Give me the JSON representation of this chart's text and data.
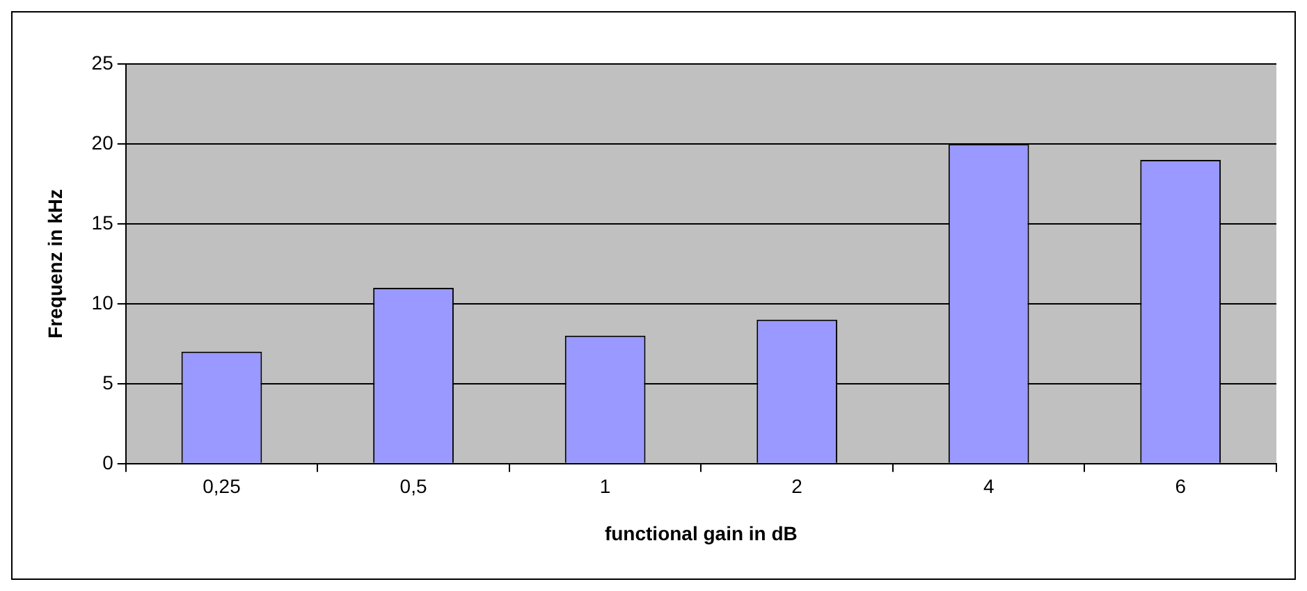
{
  "chart_data": {
    "type": "bar",
    "xlabel": "functional gain in dB",
    "ylabel": "Frequenz in kHz",
    "categories": [
      "0,25",
      "0,5",
      "1",
      "2",
      "4",
      "6"
    ],
    "values": [
      7,
      11,
      8,
      9,
      20,
      19
    ],
    "color": "#9999ff",
    "ylim": [
      0,
      25
    ],
    "yticks": [
      0,
      5,
      10,
      15,
      20,
      25
    ],
    "grid": "y",
    "legend": false
  }
}
